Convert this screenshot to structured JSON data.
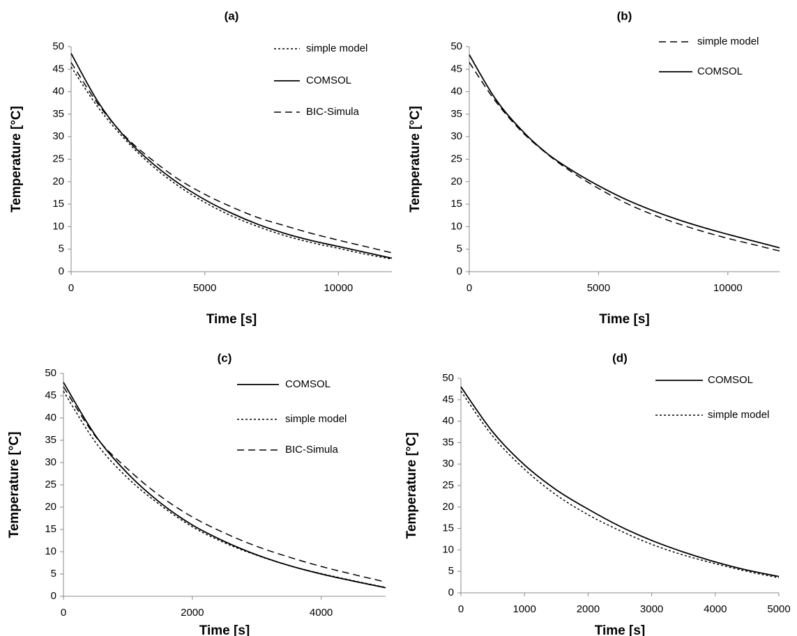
{
  "chart_data": [
    {
      "type": "line",
      "title": "(a)",
      "xlabel": "Time [s]",
      "ylabel": "Temperature [°C]",
      "xlim": [
        0,
        12000
      ],
      "ylim": [
        0,
        50
      ],
      "xticks": [
        "0",
        "5000",
        "10000"
      ],
      "yticks": [
        "0",
        "5",
        "10",
        "15",
        "20",
        "25",
        "30",
        "35",
        "40",
        "45",
        "50"
      ],
      "grid": false,
      "legend_position": "top-right",
      "series": [
        {
          "name": "simple model",
          "style": "dotted",
          "x": [
            0,
            1000,
            2000,
            3000,
            4000,
            5000,
            6000,
            7000,
            8000,
            9000,
            10000,
            11000,
            12000
          ],
          "y": [
            45.5,
            36.6,
            29.5,
            23.7,
            19.1,
            15.4,
            12.4,
            10.0,
            8.0,
            6.45,
            5.2,
            3.9,
            2.8
          ]
        },
        {
          "name": "COMSOL",
          "style": "solid",
          "x": [
            0,
            1000,
            2000,
            3000,
            4000,
            5000,
            6000,
            7000,
            8000,
            9000,
            10000,
            11000,
            12000
          ],
          "y": [
            48.5,
            37.8,
            30.0,
            24.3,
            19.7,
            16.0,
            13.0,
            10.5,
            8.5,
            6.9,
            5.6,
            4.3,
            3.0
          ]
        },
        {
          "name": "BIC-Simula",
          "style": "dashed",
          "x": [
            0,
            1000,
            2000,
            3000,
            4000,
            5000,
            6000,
            7000,
            8000,
            9000,
            10000,
            11000,
            12000
          ],
          "y": [
            46.5,
            37.3,
            30.2,
            25.0,
            20.6,
            17.2,
            14.4,
            12.0,
            10.2,
            8.5,
            7.0,
            5.6,
            4.2
          ]
        }
      ]
    },
    {
      "type": "line",
      "title": "(b)",
      "xlabel": "Time [s]",
      "ylabel": "Temperature [°C]",
      "xlim": [
        0,
        12000
      ],
      "ylim": [
        0,
        50
      ],
      "xticks": [
        "0",
        "5000",
        "10000"
      ],
      "yticks": [
        "0",
        "5",
        "10",
        "15",
        "20",
        "25",
        "30",
        "35",
        "40",
        "45",
        "50"
      ],
      "grid": false,
      "legend_position": "top-right",
      "series": [
        {
          "name": "simple model",
          "style": "dashed",
          "x": [
            0,
            1000,
            2000,
            3000,
            4000,
            5000,
            6000,
            7000,
            8000,
            9000,
            10000,
            11000,
            12000
          ],
          "y": [
            46.5,
            38.0,
            31.3,
            26.2,
            22.0,
            18.5,
            15.4,
            12.9,
            10.8,
            9.0,
            7.4,
            6.0,
            4.6
          ]
        },
        {
          "name": "COMSOL",
          "style": "solid",
          "x": [
            0,
            1000,
            2000,
            3000,
            4000,
            5000,
            6000,
            7000,
            8000,
            9000,
            10000,
            11000,
            12000
          ],
          "y": [
            48.2,
            38.5,
            31.6,
            26.3,
            22.4,
            19.1,
            16.2,
            13.8,
            11.7,
            9.9,
            8.3,
            6.8,
            5.3
          ]
        }
      ]
    },
    {
      "type": "line",
      "title": "(c)",
      "xlabel": "Time [s]",
      "ylabel": "Temperature [°C]",
      "xlim": [
        0,
        5000
      ],
      "ylim": [
        0,
        50
      ],
      "xticks": [
        "0",
        "2000",
        "4000"
      ],
      "yticks": [
        "0",
        "5",
        "10",
        "15",
        "20",
        "25",
        "30",
        "35",
        "40",
        "45",
        "50"
      ],
      "grid": false,
      "legend_position": "top-right",
      "series": [
        {
          "name": "COMSOL",
          "style": "solid",
          "x": [
            0,
            500,
            1000,
            1500,
            2000,
            2500,
            3000,
            3500,
            4000,
            4500,
            5000
          ],
          "y": [
            48.0,
            36.0,
            27.5,
            21.0,
            16.0,
            12.3,
            9.3,
            6.9,
            5.0,
            3.4,
            1.9
          ]
        },
        {
          "name": "simple model",
          "style": "dotted",
          "x": [
            0,
            500,
            1000,
            1500,
            2000,
            2500,
            3000,
            3500,
            4000,
            4500,
            5000
          ],
          "y": [
            46.0,
            34.5,
            26.5,
            20.5,
            15.6,
            12.0,
            9.2,
            6.9,
            5.1,
            3.5,
            2.0
          ]
        },
        {
          "name": "BIC-Simula",
          "style": "dashed",
          "x": [
            0,
            500,
            1000,
            1500,
            2000,
            2500,
            3000,
            3500,
            4000,
            4500,
            5000
          ],
          "y": [
            47.0,
            35.8,
            28.5,
            22.5,
            17.8,
            14.2,
            11.2,
            8.8,
            6.7,
            4.9,
            3.2
          ]
        }
      ]
    },
    {
      "type": "line",
      "title": "(d)",
      "xlabel": "Time [s]",
      "ylabel": "Temperature [°C]",
      "xlim": [
        0,
        5000
      ],
      "ylim": [
        0,
        50
      ],
      "xticks": [
        "0",
        "1000",
        "2000",
        "3000",
        "4000",
        "5000"
      ],
      "yticks": [
        "0",
        "5",
        "10",
        "15",
        "20",
        "25",
        "30",
        "35",
        "40",
        "45",
        "50"
      ],
      "grid": false,
      "legend_position": "top-right",
      "series": [
        {
          "name": "COMSOL",
          "style": "solid",
          "x": [
            0,
            500,
            1000,
            1500,
            2000,
            2500,
            3000,
            3500,
            4000,
            4500,
            5000
          ],
          "y": [
            48.0,
            37.5,
            29.8,
            24.0,
            19.5,
            15.5,
            12.2,
            9.5,
            7.2,
            5.3,
            3.8
          ]
        },
        {
          "name": "simple model",
          "style": "dotted",
          "x": [
            0,
            500,
            1000,
            1500,
            2000,
            2500,
            3000,
            3500,
            4000,
            4500,
            5000
          ],
          "y": [
            47.0,
            36.5,
            28.8,
            22.8,
            18.2,
            14.5,
            11.3,
            8.8,
            6.8,
            5.0,
            3.5
          ]
        }
      ]
    }
  ]
}
